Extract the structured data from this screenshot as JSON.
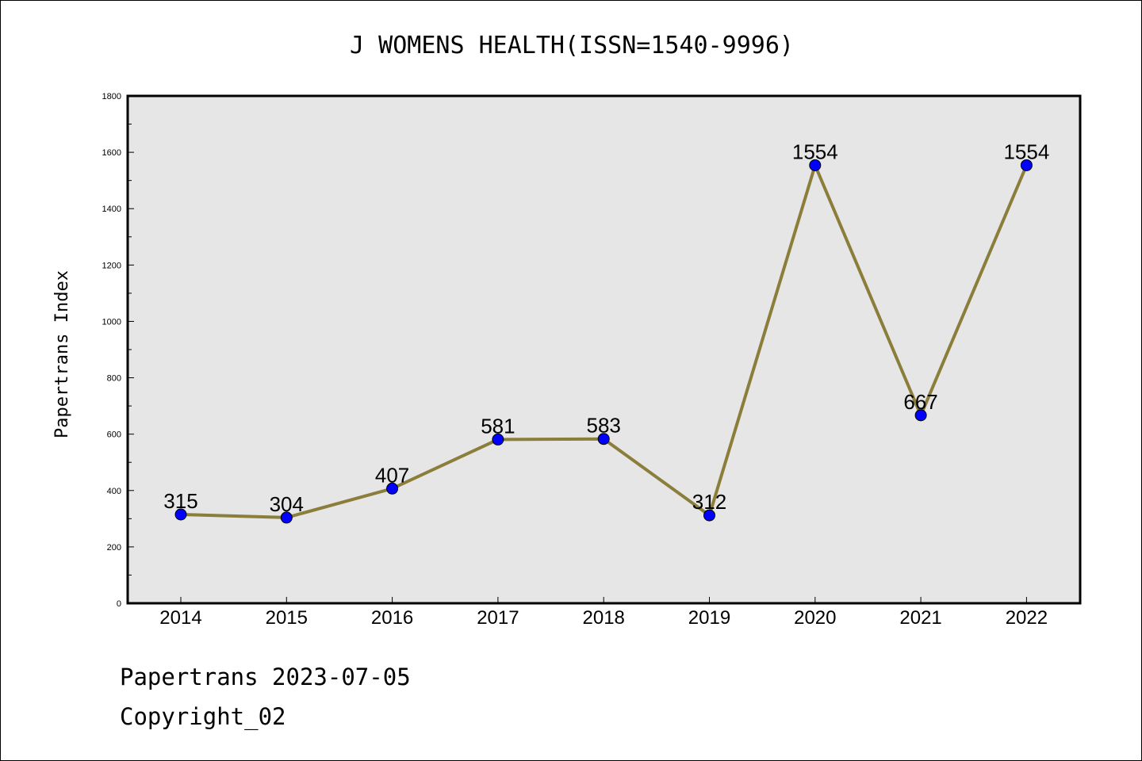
{
  "chart_data": {
    "type": "line",
    "title": "J WOMENS HEALTH(ISSN=1540-9996)",
    "ylabel": "Papertrans Index",
    "xlabel": "",
    "categories": [
      "2014",
      "2015",
      "2016",
      "2017",
      "2018",
      "2019",
      "2020",
      "2021",
      "2022"
    ],
    "values": [
      315,
      304,
      407,
      581,
      583,
      312,
      1554,
      667,
      1554
    ],
    "data_labels": [
      "315",
      "304",
      "407",
      "581",
      "583",
      "312",
      "1554",
      "667",
      "1554"
    ],
    "ylim": [
      0,
      1800
    ],
    "yticks": [
      "0",
      "200",
      "400",
      "600",
      "800",
      "1000",
      "1200",
      "1400",
      "1600",
      "1800"
    ],
    "grid": false,
    "colors": {
      "line": "#8b7d3a",
      "marker": "#0000ff",
      "plot_background": "#e6e6e6"
    }
  },
  "footer": {
    "date_line": "Papertrans 2023-07-05",
    "copyright_line": "Copyright_02"
  }
}
